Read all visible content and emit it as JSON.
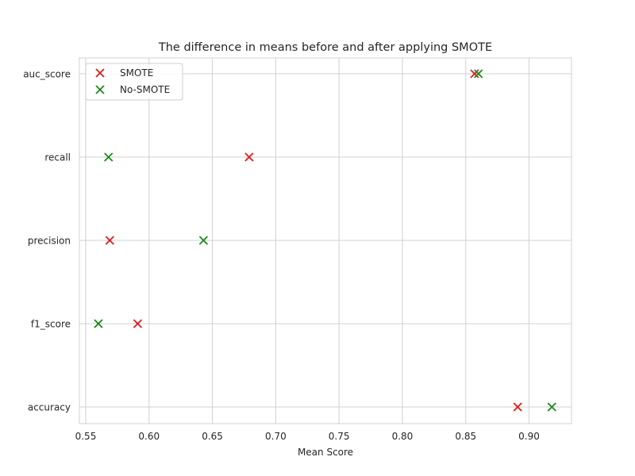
{
  "chart_data": {
    "type": "scatter",
    "title": "The difference in means before and after applying SMOTE",
    "xlabel": "Mean Score",
    "ylabel": "",
    "categories": [
      "auc_score",
      "recall",
      "precision",
      "f1_score",
      "accuracy"
    ],
    "xlim": [
      0.545,
      0.9335
    ],
    "xticks": [
      0.55,
      0.6,
      0.65,
      0.7,
      0.75,
      0.8,
      0.85,
      0.9
    ],
    "xtick_labels": [
      "0.55",
      "0.60",
      "0.65",
      "0.70",
      "0.75",
      "0.80",
      "0.85",
      "0.90"
    ],
    "grid": true,
    "legend_position": "top-left",
    "marker": "x",
    "series": [
      {
        "name": "SMOTE",
        "color": "#e41a1c",
        "values": [
          0.857,
          0.679,
          0.569,
          0.591,
          0.891
        ]
      },
      {
        "name": "No-SMOTE",
        "color": "#1a8a1a",
        "values": [
          0.86,
          0.568,
          0.643,
          0.56,
          0.918
        ]
      }
    ]
  }
}
